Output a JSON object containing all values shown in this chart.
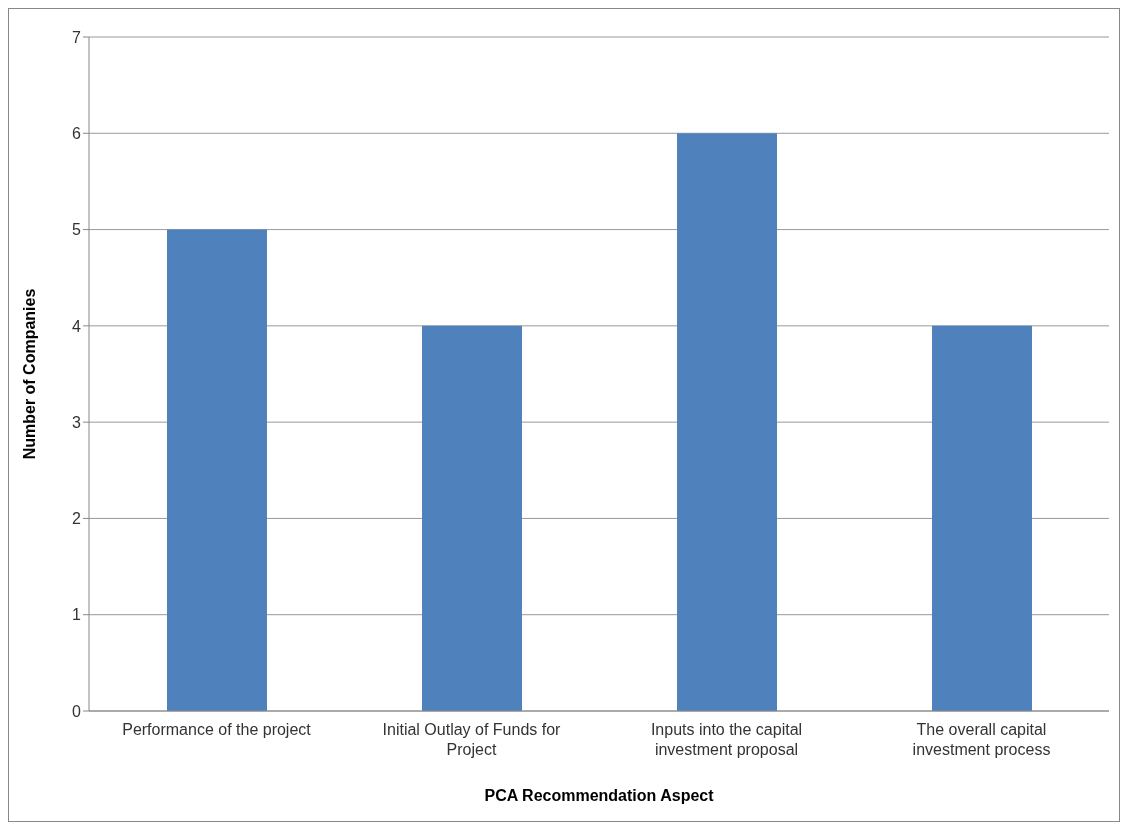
{
  "chart_data": {
    "type": "bar",
    "categories": [
      "Performance of the project",
      "Initial Outlay of Funds for Project",
      "Inputs into the capital investment proposal",
      "The overall capital investment process"
    ],
    "values": [
      5,
      4,
      6,
      4
    ],
    "color": "#4f81bd",
    "xlabel": "PCA Recommendation Aspect",
    "ylabel": "Number of Companies",
    "ylim": [
      0,
      7
    ],
    "yticks": [
      0,
      1,
      2,
      3,
      4,
      5,
      6,
      7
    ],
    "grid": "y"
  }
}
